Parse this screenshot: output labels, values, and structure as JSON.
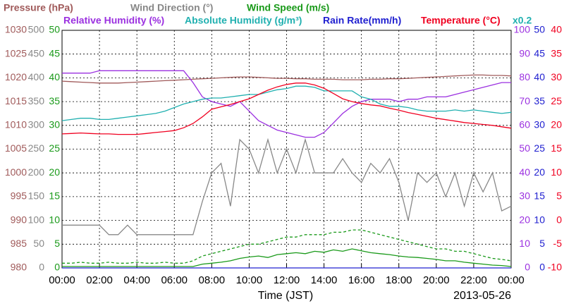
{
  "chart_data": {
    "type": "line",
    "xlabel": "Time (JST)",
    "date": "2013-05-26",
    "xlim": [
      0,
      24
    ],
    "xticks": [
      {
        "value": 0,
        "label": "00:00"
      },
      {
        "value": 2,
        "label": "02:00"
      },
      {
        "value": 4,
        "label": "04:00"
      },
      {
        "value": 6,
        "label": "06:00"
      },
      {
        "value": 8,
        "label": "08:00"
      },
      {
        "value": 10,
        "label": "10:00"
      },
      {
        "value": 12,
        "label": "12:00"
      },
      {
        "value": 14,
        "label": "14:00"
      },
      {
        "value": 16,
        "label": "16:00"
      },
      {
        "value": 18,
        "label": "18:00"
      },
      {
        "value": 20,
        "label": "20:00"
      },
      {
        "value": 22,
        "label": "22:00"
      },
      {
        "value": 24,
        "label": "00:00"
      }
    ],
    "grid": true,
    "x": [
      0,
      0.5,
      1,
      1.5,
      2,
      2.5,
      3,
      3.5,
      4,
      4.5,
      5,
      5.5,
      6,
      6.5,
      7,
      7.5,
      8,
      8.5,
      9,
      9.5,
      10,
      10.5,
      11,
      11.5,
      12,
      12.5,
      13,
      13.5,
      14,
      14.5,
      15,
      15.5,
      16,
      16.5,
      17,
      17.5,
      18,
      18.5,
      19,
      19.5,
      20,
      20.5,
      21,
      21.5,
      22,
      22.5,
      23,
      23.5,
      24
    ],
    "axes": {
      "pressure": {
        "ylim": [
          980,
          1030
        ],
        "yticks": [
          980,
          985,
          990,
          995,
          1000,
          1005,
          1010,
          1015,
          1020,
          1025,
          1030
        ]
      },
      "wind_direction": {
        "ylim": [
          0,
          500
        ],
        "yticks": [
          0,
          50,
          100,
          150,
          200,
          250,
          300,
          350,
          400,
          450,
          500
        ]
      },
      "wind_speed": {
        "ylim": [
          0,
          50
        ],
        "yticks": [
          0,
          5,
          10,
          15,
          20,
          25,
          30,
          35,
          40,
          45,
          50
        ]
      },
      "rh": {
        "ylim": [
          0,
          100
        ],
        "yticks": [
          0,
          10,
          20,
          30,
          40,
          50,
          60,
          70,
          80,
          90,
          100
        ]
      },
      "rain": {
        "ylim": [
          0,
          50
        ],
        "yticks": [
          0,
          5,
          10,
          15,
          20,
          25,
          30,
          35,
          40,
          45,
          50
        ]
      },
      "temperature": {
        "ylim": [
          -10,
          40
        ],
        "yticks": [
          -10,
          -5,
          0,
          5,
          10,
          15,
          20,
          25,
          30,
          35,
          40
        ]
      }
    },
    "series": [
      {
        "name": "Pressure (hPa)",
        "color": "#a05a5a",
        "axis": "pressure",
        "values": [
          1019.3,
          1019.2,
          1019.1,
          1019,
          1018.9,
          1018.9,
          1018.9,
          1019,
          1019.1,
          1019.2,
          1019.3,
          1019.4,
          1019.5,
          1019.6,
          1019.7,
          1019.8,
          1019.9,
          1020,
          1020.1,
          1020.2,
          1020.2,
          1020.1,
          1020,
          1019.9,
          1019.9,
          1019.8,
          1019.8,
          1019.7,
          1019.7,
          1019.7,
          1019.6,
          1019.6,
          1019.6,
          1019.7,
          1019.7,
          1019.8,
          1019.8,
          1019.9,
          1020,
          1020.1,
          1020.2,
          1020.3,
          1020.4,
          1020.5,
          1020.6,
          1020.6,
          1020.5,
          1020.5,
          1020.4
        ]
      },
      {
        "name": "Wind Direction (°)",
        "color": "#888888",
        "axis": "wind_direction",
        "values": [
          90,
          90,
          90,
          90,
          90,
          70,
          70,
          90,
          70,
          70,
          70,
          70,
          70,
          70,
          70,
          140,
          200,
          220,
          130,
          270,
          250,
          200,
          270,
          200,
          250,
          200,
          270,
          200,
          200,
          200,
          230,
          200,
          180,
          220,
          200,
          230,
          180,
          100,
          200,
          180,
          200,
          150,
          200,
          130,
          200,
          160,
          200,
          120,
          130
        ]
      },
      {
        "name": "Wind Speed (m/s)",
        "color": "#1a9a1a",
        "axis": "wind_speed",
        "values": [
          0.3,
          0.3,
          0.3,
          0.3,
          0.3,
          0.3,
          0.3,
          0.3,
          0.3,
          0.3,
          0.3,
          0.3,
          0.3,
          0.3,
          0.3,
          0.8,
          1,
          1.2,
          1.5,
          2,
          2.3,
          2.5,
          2.2,
          2.8,
          3,
          3.2,
          3,
          3.5,
          3.3,
          3.8,
          3.5,
          4,
          3.6,
          3.2,
          3,
          2.8,
          2.5,
          2.3,
          2.2,
          2,
          1.8,
          1.5,
          1.5,
          1.2,
          1,
          0.8,
          0.6,
          0.5,
          0.3
        ],
        "max_values": [
          1,
          1,
          1.2,
          1,
          1,
          1.2,
          1,
          1,
          1.2,
          1,
          1,
          1.2,
          1,
          1,
          1.5,
          2.5,
          3,
          3.5,
          4,
          4.5,
          5,
          5,
          5.5,
          6,
          6.5,
          6.5,
          7,
          7,
          7,
          7.5,
          7.5,
          8,
          8,
          7.5,
          7,
          6.5,
          6,
          5.5,
          5,
          4.5,
          4,
          4,
          3.5,
          3.5,
          3,
          2.5,
          2,
          1.8,
          1.5
        ]
      },
      {
        "name": "Relative Humidity (%)",
        "color": "#9b30e0",
        "axis": "rh",
        "values": [
          82,
          82,
          82,
          82,
          83,
          83,
          83,
          83,
          83,
          83,
          83,
          83,
          83,
          83,
          78,
          72,
          70,
          69,
          68,
          70,
          66,
          62,
          60,
          58,
          57,
          56,
          55,
          55,
          57,
          61,
          65,
          68,
          70,
          71,
          71,
          71,
          70,
          71,
          71,
          72,
          72,
          72,
          73,
          74,
          75,
          76,
          77,
          78,
          78
        ]
      },
      {
        "name": "Absolute Humidity (g/m³)",
        "color": "#20b0b0",
        "axis": "rh",
        "scale": {
          "value": 0.2,
          "label": "x0.2"
        },
        "values": [
          12.4,
          12.5,
          12.6,
          12.6,
          12.5,
          12.5,
          12.6,
          12.7,
          12.8,
          12.9,
          13,
          13.2,
          13.5,
          13.8,
          14,
          14.2,
          14.3,
          14.3,
          14.4,
          14.5,
          14.6,
          14.6,
          14.8,
          15,
          15.1,
          15.3,
          15.3,
          15.2,
          14.9,
          14.9,
          14.9,
          14.9,
          14.4,
          14.2,
          13.8,
          13.6,
          13.6,
          13.5,
          13.3,
          13.2,
          13.2,
          13.2,
          13.3,
          13.2,
          13.3,
          13.2,
          13.1,
          13,
          13.1
        ]
      },
      {
        "name": "Rain Rate(mm/h)",
        "color": "#2020d0",
        "axis": "rain",
        "values": [
          0,
          0,
          0,
          0,
          0,
          0,
          0,
          0,
          0,
          0,
          0,
          0,
          0,
          0,
          0,
          0,
          0,
          0,
          0,
          0,
          0,
          0,
          0,
          0,
          0,
          0,
          0,
          0,
          0,
          0,
          0,
          0,
          0,
          0,
          0,
          0,
          0,
          0,
          0,
          0,
          0,
          0,
          0,
          0,
          0,
          0,
          0,
          0,
          0
        ]
      },
      {
        "name": "Temperature (°C)",
        "color": "#f00020",
        "axis": "temperature",
        "values": [
          18.2,
          18.3,
          18.4,
          18.3,
          18.2,
          18.2,
          18.1,
          18.1,
          18.1,
          18.3,
          18.5,
          18.7,
          18.9,
          19.5,
          20.4,
          21.8,
          23.4,
          23.9,
          24.4,
          25,
          25.6,
          26.5,
          27.4,
          28.1,
          28.6,
          28.9,
          28.9,
          28.5,
          27.8,
          26.7,
          25.6,
          25,
          24.6,
          24.3,
          24.1,
          23.6,
          23.2,
          22.7,
          22.3,
          21.9,
          21.5,
          21.2,
          20.9,
          20.6,
          20.4,
          20.2,
          20,
          19.7,
          19.4
        ]
      }
    ]
  }
}
